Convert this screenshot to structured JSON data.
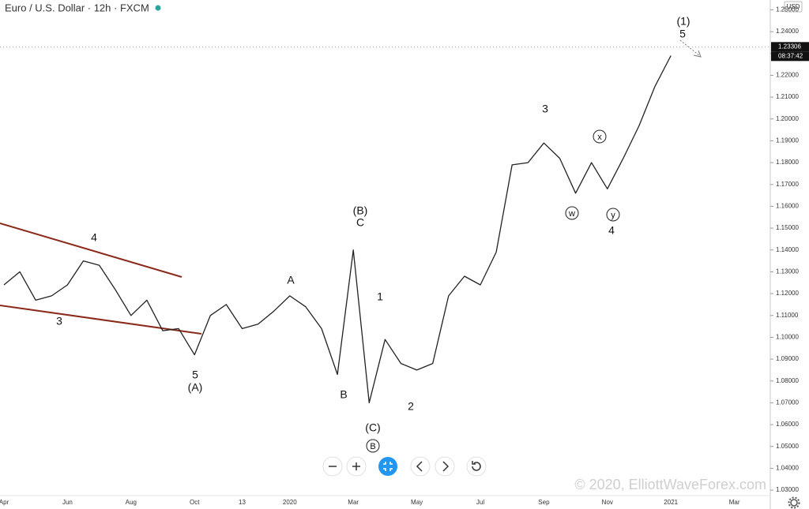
{
  "chart_data": {
    "type": "line",
    "title": "Euro / U.S. Dollar · 12h · FXCM",
    "currency": "USD",
    "watermark": "© 2020, ElliottWaveForex.com",
    "categories": [
      "Apr",
      null,
      null,
      null,
      "Jun",
      null,
      null,
      null,
      "Aug",
      null,
      null,
      null,
      "Oct",
      null,
      null,
      "13",
      null,
      null,
      "2020",
      null,
      null,
      null,
      "Mar",
      null,
      null,
      null,
      "May",
      null,
      null,
      null,
      "Jul",
      null,
      null,
      null,
      "Sep",
      null,
      null,
      null,
      "Nov",
      null,
      null,
      null,
      "2021",
      null,
      null,
      null,
      "Mar"
    ],
    "series": [
      {
        "name": "EURUSD",
        "color": "#222222",
        "values": [
          1.124,
          1.13,
          1.117,
          1.119,
          1.124,
          1.135,
          1.133,
          1.122,
          1.11,
          1.117,
          1.103,
          1.104,
          1.092,
          1.11,
          1.115,
          1.104,
          1.106,
          1.112,
          1.119,
          1.114,
          1.104,
          1.083,
          1.14,
          1.07,
          1.099,
          1.088,
          1.085,
          1.088,
          1.119,
          1.128,
          1.124,
          1.139,
          1.179,
          1.18,
          1.189,
          1.182,
          1.166,
          1.18,
          1.168,
          1.182,
          1.197,
          1.215,
          1.229,
          null,
          null,
          null,
          null
        ]
      }
    ],
    "last_price": 1.23306,
    "countdown": "08:37:42",
    "ylim": [
      1.0275,
      1.2545
    ],
    "yticks": [
      {
        "value": 1.03,
        "label": "1.03000"
      },
      {
        "value": 1.04,
        "label": "1.04000"
      },
      {
        "value": 1.05,
        "label": "1.05000"
      },
      {
        "value": 1.06,
        "label": "1.06000"
      },
      {
        "value": 1.07,
        "label": "1.07000"
      },
      {
        "value": 1.08,
        "label": "1.08000"
      },
      {
        "value": 1.09,
        "label": "1.09000"
      },
      {
        "value": 1.1,
        "label": "1.10000"
      },
      {
        "value": 1.11,
        "label": "1.11000"
      },
      {
        "value": 1.12,
        "label": "1.12000"
      },
      {
        "value": 1.13,
        "label": "1.13000"
      },
      {
        "value": 1.14,
        "label": "1.14000"
      },
      {
        "value": 1.15,
        "label": "1.15000"
      },
      {
        "value": 1.16,
        "label": "1.16000"
      },
      {
        "value": 1.17,
        "label": "1.17000"
      },
      {
        "value": 1.18,
        "label": "1.18000"
      },
      {
        "value": 1.19,
        "label": "1.19000"
      },
      {
        "value": 1.2,
        "label": "1.20000"
      },
      {
        "value": 1.21,
        "label": "1.21000"
      },
      {
        "value": 1.22,
        "label": "1.22000"
      },
      {
        "value": 1.23,
        "label": "1.23000"
      },
      {
        "value": 1.24,
        "label": "1.24000"
      },
      {
        "value": 1.25,
        "label": "1.25000"
      }
    ],
    "grid": false,
    "annotations": [
      "(1)",
      "5",
      "3",
      "x",
      "w",
      "y",
      "4",
      "(B)",
      "C",
      "A",
      "1",
      "B",
      "2",
      "(C)",
      "B",
      "4",
      "3",
      "5",
      "(A)"
    ]
  }
}
